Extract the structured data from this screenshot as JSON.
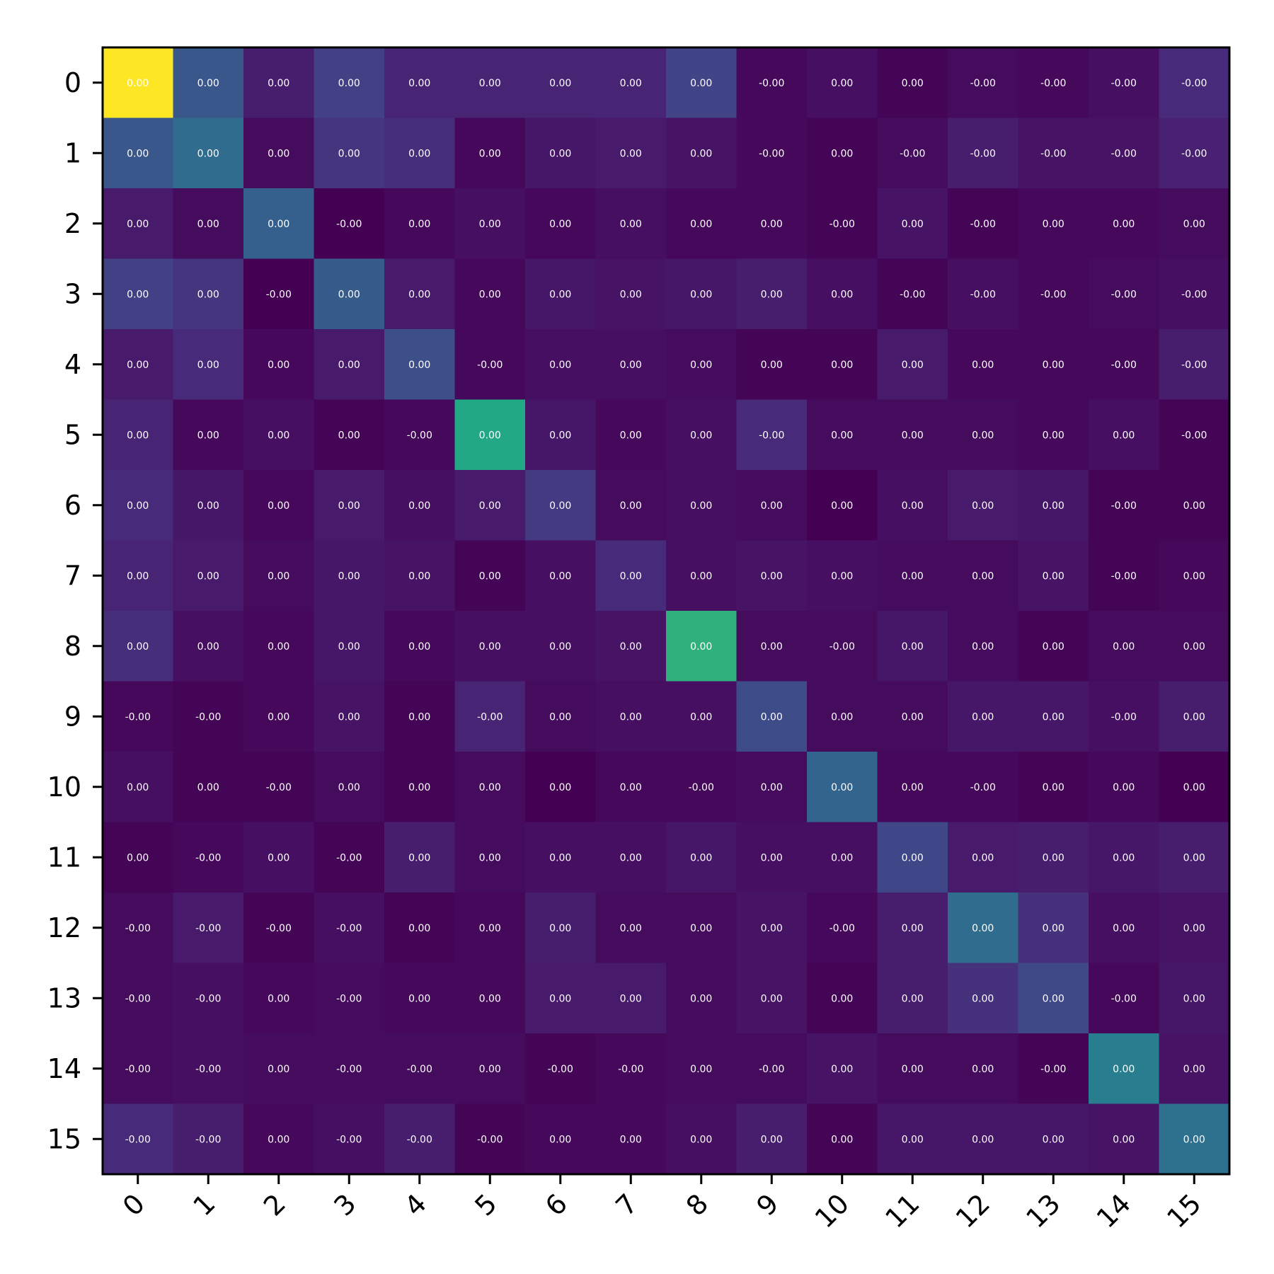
{
  "chart_data": {
    "type": "heatmap",
    "title": "",
    "xlabel": "",
    "ylabel": "",
    "colormap": "viridis",
    "x_tick_rotation": 45,
    "x_ticks": [
      "0",
      "1",
      "2",
      "3",
      "4",
      "5",
      "6",
      "7",
      "8",
      "9",
      "10",
      "11",
      "12",
      "13",
      "14",
      "15"
    ],
    "y_ticks": [
      "0",
      "1",
      "2",
      "3",
      "4",
      "5",
      "6",
      "7",
      "8",
      "9",
      "10",
      "11",
      "12",
      "13",
      "14",
      "15"
    ],
    "labels": [
      [
        "0.00",
        "0.00",
        "0.00",
        "0.00",
        "0.00",
        "0.00",
        "0.00",
        "0.00",
        "0.00",
        "-0.00",
        "0.00",
        "0.00",
        "-0.00",
        "-0.00",
        "-0.00",
        "-0.00"
      ],
      [
        "0.00",
        "0.00",
        "0.00",
        "0.00",
        "0.00",
        "0.00",
        "0.00",
        "0.00",
        "0.00",
        "-0.00",
        "0.00",
        "-0.00",
        "-0.00",
        "-0.00",
        "-0.00",
        "-0.00"
      ],
      [
        "0.00",
        "0.00",
        "0.00",
        "-0.00",
        "0.00",
        "0.00",
        "0.00",
        "0.00",
        "0.00",
        "0.00",
        "-0.00",
        "0.00",
        "-0.00",
        "0.00",
        "0.00",
        "0.00"
      ],
      [
        "0.00",
        "0.00",
        "-0.00",
        "0.00",
        "0.00",
        "0.00",
        "0.00",
        "0.00",
        "0.00",
        "0.00",
        "0.00",
        "-0.00",
        "-0.00",
        "-0.00",
        "-0.00",
        "-0.00"
      ],
      [
        "0.00",
        "0.00",
        "0.00",
        "0.00",
        "0.00",
        "-0.00",
        "0.00",
        "0.00",
        "0.00",
        "0.00",
        "0.00",
        "0.00",
        "0.00",
        "0.00",
        "-0.00",
        "-0.00"
      ],
      [
        "0.00",
        "0.00",
        "0.00",
        "0.00",
        "-0.00",
        "0.00",
        "0.00",
        "0.00",
        "0.00",
        "-0.00",
        "0.00",
        "0.00",
        "0.00",
        "0.00",
        "0.00",
        "-0.00"
      ],
      [
        "0.00",
        "0.00",
        "0.00",
        "0.00",
        "0.00",
        "0.00",
        "0.00",
        "0.00",
        "0.00",
        "0.00",
        "0.00",
        "0.00",
        "0.00",
        "0.00",
        "-0.00",
        "0.00"
      ],
      [
        "0.00",
        "0.00",
        "0.00",
        "0.00",
        "0.00",
        "0.00",
        "0.00",
        "0.00",
        "0.00",
        "0.00",
        "0.00",
        "0.00",
        "0.00",
        "0.00",
        "-0.00",
        "0.00"
      ],
      [
        "0.00",
        "0.00",
        "0.00",
        "0.00",
        "0.00",
        "0.00",
        "0.00",
        "0.00",
        "0.00",
        "0.00",
        "-0.00",
        "0.00",
        "0.00",
        "0.00",
        "0.00",
        "0.00"
      ],
      [
        "-0.00",
        "-0.00",
        "0.00",
        "0.00",
        "0.00",
        "-0.00",
        "0.00",
        "0.00",
        "0.00",
        "0.00",
        "0.00",
        "0.00",
        "0.00",
        "0.00",
        "-0.00",
        "0.00"
      ],
      [
        "0.00",
        "0.00",
        "-0.00",
        "0.00",
        "0.00",
        "0.00",
        "0.00",
        "0.00",
        "-0.00",
        "0.00",
        "0.00",
        "0.00",
        "-0.00",
        "0.00",
        "0.00",
        "0.00"
      ],
      [
        "0.00",
        "-0.00",
        "0.00",
        "-0.00",
        "0.00",
        "0.00",
        "0.00",
        "0.00",
        "0.00",
        "0.00",
        "0.00",
        "0.00",
        "0.00",
        "0.00",
        "0.00",
        "0.00"
      ],
      [
        "-0.00",
        "-0.00",
        "-0.00",
        "-0.00",
        "0.00",
        "0.00",
        "0.00",
        "0.00",
        "0.00",
        "0.00",
        "-0.00",
        "0.00",
        "0.00",
        "0.00",
        "0.00",
        "0.00"
      ],
      [
        "-0.00",
        "-0.00",
        "0.00",
        "-0.00",
        "0.00",
        "0.00",
        "0.00",
        "0.00",
        "0.00",
        "0.00",
        "0.00",
        "0.00",
        "0.00",
        "0.00",
        "-0.00",
        "0.00"
      ],
      [
        "-0.00",
        "-0.00",
        "0.00",
        "-0.00",
        "-0.00",
        "0.00",
        "-0.00",
        "-0.00",
        "0.00",
        "-0.00",
        "0.00",
        "0.00",
        "0.00",
        "-0.00",
        "0.00",
        "0.00"
      ],
      [
        "-0.00",
        "-0.00",
        "0.00",
        "-0.00",
        "-0.00",
        "-0.00",
        "0.00",
        "0.00",
        "0.00",
        "0.00",
        "0.00",
        "0.00",
        "0.00",
        "0.00",
        "0.00",
        "0.00"
      ]
    ],
    "intensity": [
      [
        1.0,
        0.27,
        0.08,
        0.19,
        0.1,
        0.1,
        0.1,
        0.1,
        0.2,
        0.02,
        0.04,
        0.01,
        0.03,
        0.02,
        0.04,
        0.12
      ],
      [
        0.27,
        0.35,
        0.03,
        0.15,
        0.13,
        0.02,
        0.06,
        0.07,
        0.05,
        0.02,
        0.01,
        0.03,
        0.08,
        0.05,
        0.05,
        0.09
      ],
      [
        0.07,
        0.03,
        0.3,
        0.0,
        0.02,
        0.04,
        0.02,
        0.04,
        0.02,
        0.02,
        0.01,
        0.05,
        0.01,
        0.02,
        0.02,
        0.03
      ],
      [
        0.19,
        0.15,
        0.0,
        0.29,
        0.07,
        0.02,
        0.06,
        0.05,
        0.06,
        0.08,
        0.04,
        0.01,
        0.04,
        0.02,
        0.03,
        0.04
      ],
      [
        0.07,
        0.12,
        0.02,
        0.07,
        0.24,
        0.02,
        0.04,
        0.04,
        0.03,
        0.01,
        0.01,
        0.07,
        0.02,
        0.02,
        0.02,
        0.08
      ],
      [
        0.1,
        0.02,
        0.04,
        0.01,
        0.02,
        0.6,
        0.06,
        0.02,
        0.04,
        0.12,
        0.03,
        0.03,
        0.03,
        0.02,
        0.04,
        0.01
      ],
      [
        0.12,
        0.06,
        0.02,
        0.07,
        0.04,
        0.07,
        0.17,
        0.03,
        0.04,
        0.03,
        0.0,
        0.04,
        0.07,
        0.06,
        0.01,
        0.01
      ],
      [
        0.1,
        0.07,
        0.03,
        0.06,
        0.05,
        0.01,
        0.04,
        0.12,
        0.04,
        0.05,
        0.04,
        0.03,
        0.03,
        0.05,
        0.01,
        0.02
      ],
      [
        0.13,
        0.04,
        0.02,
        0.06,
        0.02,
        0.04,
        0.04,
        0.05,
        0.64,
        0.03,
        0.03,
        0.06,
        0.03,
        0.01,
        0.03,
        0.03
      ],
      [
        0.02,
        0.01,
        0.02,
        0.05,
        0.01,
        0.1,
        0.03,
        0.04,
        0.04,
        0.23,
        0.03,
        0.03,
        0.06,
        0.06,
        0.04,
        0.08
      ],
      [
        0.04,
        0.01,
        0.01,
        0.03,
        0.01,
        0.03,
        0.0,
        0.02,
        0.02,
        0.03,
        0.32,
        0.02,
        0.02,
        0.01,
        0.02,
        0.0
      ],
      [
        0.01,
        0.02,
        0.04,
        0.01,
        0.08,
        0.03,
        0.04,
        0.04,
        0.06,
        0.04,
        0.04,
        0.21,
        0.07,
        0.08,
        0.06,
        0.08
      ],
      [
        0.03,
        0.07,
        0.01,
        0.04,
        0.01,
        0.02,
        0.08,
        0.03,
        0.03,
        0.05,
        0.02,
        0.08,
        0.35,
        0.14,
        0.04,
        0.05
      ],
      [
        0.03,
        0.04,
        0.02,
        0.03,
        0.02,
        0.02,
        0.07,
        0.07,
        0.03,
        0.05,
        0.01,
        0.08,
        0.14,
        0.22,
        0.02,
        0.06
      ],
      [
        0.03,
        0.04,
        0.03,
        0.03,
        0.03,
        0.03,
        0.01,
        0.02,
        0.03,
        0.03,
        0.05,
        0.03,
        0.03,
        0.01,
        0.42,
        0.05
      ],
      [
        0.12,
        0.08,
        0.02,
        0.04,
        0.08,
        0.01,
        0.02,
        0.02,
        0.04,
        0.08,
        0.01,
        0.06,
        0.06,
        0.06,
        0.05,
        0.37
      ]
    ]
  }
}
